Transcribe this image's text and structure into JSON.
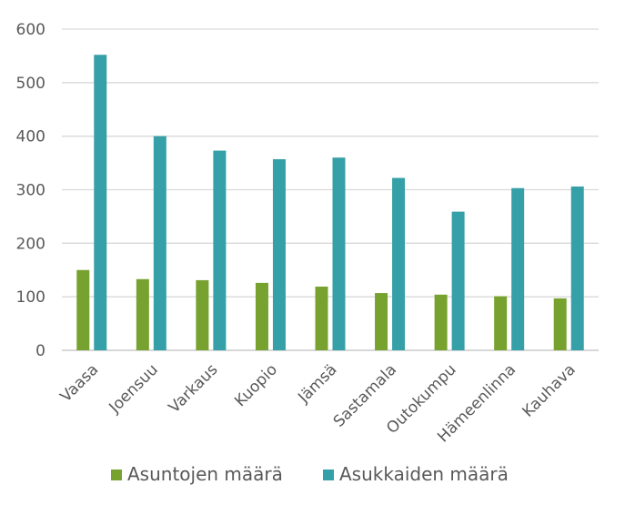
{
  "chart_data": {
    "type": "bar",
    "title": "",
    "xlabel": "",
    "ylabel": "",
    "categories": [
      "Vaasa",
      "Joensuu",
      "Varkaus",
      "Kuopio",
      "Jämsä",
      "Sastamala",
      "Outokumpu",
      "Hämeenlinna",
      "Kauhava"
    ],
    "series": [
      {
        "name": "Asuntojen määrä",
        "color": "#78A22F",
        "values": [
          150,
          133,
          131,
          126,
          119,
          107,
          104,
          101,
          97
        ]
      },
      {
        "name": "Asukkaiden määrä",
        "color": "#35A0A7",
        "values": [
          552,
          400,
          373,
          357,
          360,
          322,
          259,
          303,
          306
        ]
      }
    ],
    "ylim": [
      0,
      600
    ],
    "yticks": [
      "0",
      "100",
      "200",
      "300",
      "400",
      "500",
      "600"
    ],
    "grid": true,
    "legend_position": "bottom"
  }
}
